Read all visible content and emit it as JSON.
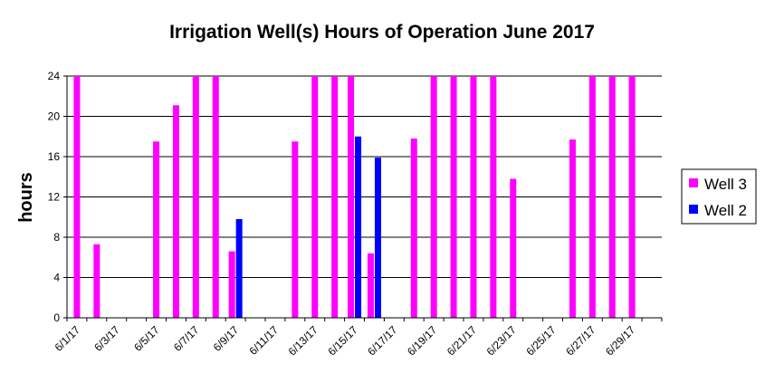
{
  "chart_data": {
    "type": "bar",
    "title": "Irrigation Well(s) Hours of Operation June 2017",
    "xlabel": "",
    "ylabel": "hours",
    "ylim": [
      0,
      24
    ],
    "yticks": [
      "0",
      "4",
      "8",
      "12",
      "16",
      "20",
      "24"
    ],
    "categories": [
      "6/1/17",
      "6/2/17",
      "6/3/17",
      "6/4/17",
      "6/5/17",
      "6/6/17",
      "6/7/17",
      "6/8/17",
      "6/9/17",
      "6/10/17",
      "6/11/17",
      "6/12/17",
      "6/13/17",
      "6/14/17",
      "6/15/17",
      "6/16/17",
      "6/17/17",
      "6/18/17",
      "6/19/17",
      "6/20/17",
      "6/21/17",
      "6/22/17",
      "6/23/17",
      "6/24/17",
      "6/25/17",
      "6/26/17",
      "6/27/17",
      "6/28/17",
      "6/29/17",
      "6/30/17"
    ],
    "xtick_labels": [
      "6/1/17",
      "",
      "6/3/17",
      "",
      "6/5/17",
      "",
      "6/7/17",
      "",
      "6/9/17",
      "",
      "6/11/17",
      "",
      "6/13/17",
      "",
      "6/15/17",
      "",
      "6/17/17",
      "",
      "6/19/17",
      "",
      "6/21/17",
      "",
      "6/23/17",
      "",
      "6/25/17",
      "",
      "6/27/17",
      "",
      "6/29/17",
      ""
    ],
    "series": [
      {
        "name": "Well 3",
        "color": "#ff00ff",
        "values": [
          24,
          7.3,
          0,
          0,
          17.5,
          21.1,
          24,
          24,
          6.6,
          0,
          0,
          17.5,
          24,
          24,
          24,
          6.4,
          0,
          17.8,
          24,
          24,
          24,
          24,
          13.8,
          0,
          0,
          17.7,
          24,
          24,
          24,
          0
        ]
      },
      {
        "name": "Well 2",
        "color": "#0000ff",
        "values": [
          0,
          0,
          0,
          0,
          0,
          0,
          0,
          0,
          9.8,
          0,
          0,
          0,
          0,
          0,
          18.0,
          15.9,
          0,
          0,
          0,
          0,
          0,
          0,
          0,
          0,
          0,
          0,
          0,
          0,
          0,
          0
        ]
      }
    ],
    "grid": true,
    "legend_position": "right"
  }
}
